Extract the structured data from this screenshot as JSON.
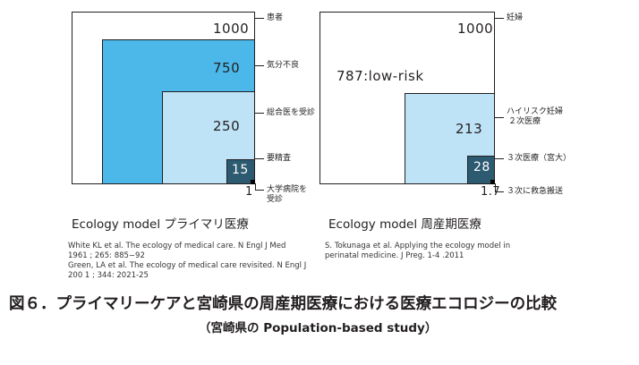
{
  "colors": {
    "level1_fill": "#ffffff",
    "level2_fill": "#4cb8ea",
    "level3_fill": "#bfe3f6",
    "level4_fill": "#2c5a70",
    "level5_marker": "#000000",
    "text": "#231f20"
  },
  "left": {
    "values": {
      "v1000": "1000",
      "v750": "750",
      "v250": "250",
      "v15": "15",
      "v1": "1"
    },
    "labels": {
      "l1": "患者",
      "l2": "気分不良",
      "l3": "総合医を受診",
      "l4": "要精査",
      "l5_line1": "大学病院を",
      "l5_line2": "受診"
    },
    "caption": "Ecology model プライマリ医療",
    "refs": [
      "White KL et al. The ecology of medical care. N Engl J Med",
      "1961 ; 265: 885−92",
      "Green, LA et al. The ecology of medical care revisited. N Engl J",
      "200 1 ; 344: 2021-25"
    ]
  },
  "right": {
    "values": {
      "v1000": "1000",
      "v787": "787:low-risk",
      "v213": "213",
      "v28": "28",
      "v1_7": "1.7"
    },
    "labels": {
      "l1": "妊婦",
      "l2_line1": "ハイリスク妊婦",
      "l2_line2": "２次医療",
      "l3": "３次医療（宮大）",
      "l4": "３次に救急搬送"
    },
    "caption": "Ecology model 周産期医療",
    "refs": [
      "S. Tokunaga et al. Applying the ecology model in",
      "perinatal medicine. J Preg. 1-4 .2011"
    ]
  },
  "figure": {
    "title": "図６．プライマリーケアと宮崎県の周産期医療における医療エコロジーの比較",
    "subtitle": "（宮崎県の Population-based study）"
  }
}
